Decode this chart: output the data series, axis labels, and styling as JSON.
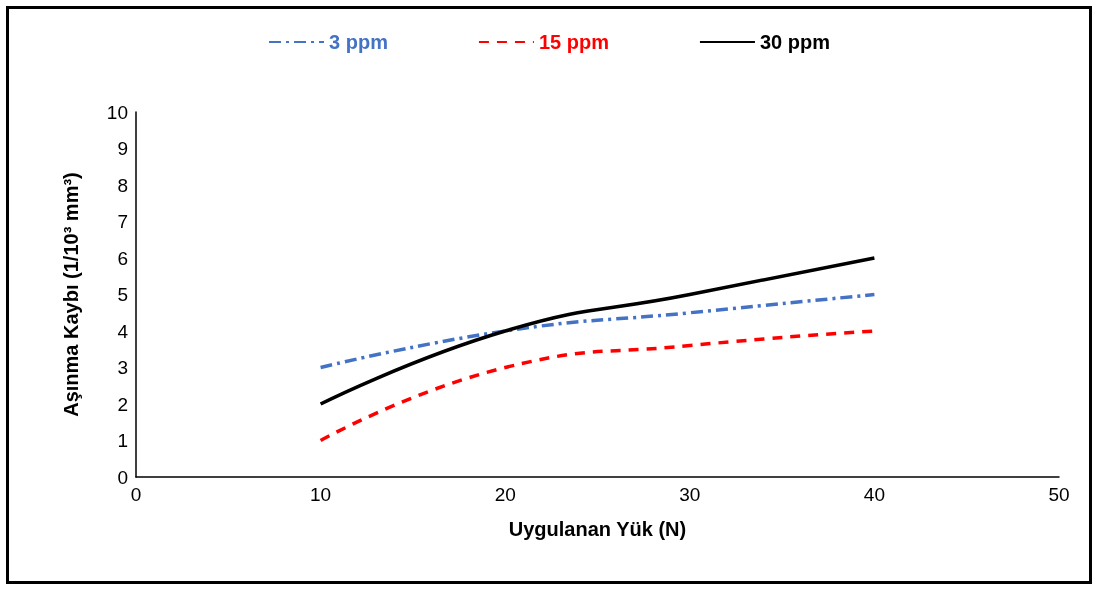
{
  "chart_data": {
    "type": "line",
    "xlabel": "Uygulanan Yük (N)",
    "ylabel": "Aşınma Kaybı (1/10³ mm³)",
    "x": [
      10,
      20,
      30,
      40
    ],
    "series": [
      {
        "name": "3 ppm",
        "color": "#4472c4",
        "line_style": "dashdot",
        "values": [
          3,
          4,
          4.5,
          5
        ]
      },
      {
        "name": "15 ppm",
        "color": "#ff0000",
        "line_style": "dashed",
        "values": [
          1,
          3,
          3.6,
          4
        ]
      },
      {
        "name": "30 ppm",
        "color": "#000000",
        "line_style": "solid",
        "values": [
          2,
          4,
          5,
          6
        ]
      }
    ],
    "xlim": [
      0,
      50
    ],
    "xticks": [
      0,
      10,
      20,
      30,
      40,
      50
    ],
    "ylim": [
      0,
      10
    ],
    "yticks": [
      0,
      1,
      2,
      3,
      4,
      5,
      6,
      7,
      8,
      9,
      10
    ],
    "grid": false,
    "legend": "top",
    "marker": "none"
  }
}
